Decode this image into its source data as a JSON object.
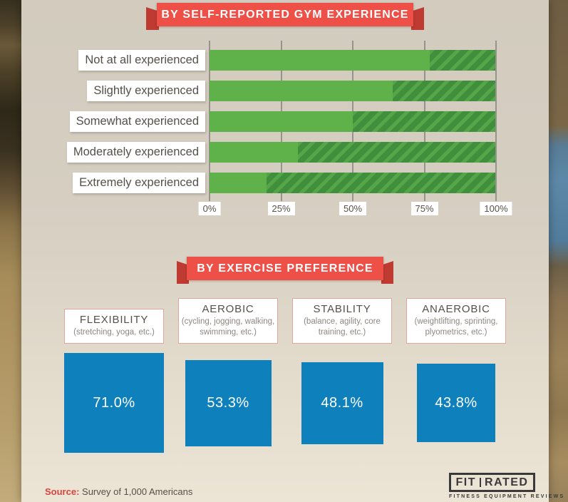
{
  "experience_section": {
    "banner": "BY SELF-REPORTED GYM EXPERIENCE"
  },
  "preference_section": {
    "banner": "BY EXERCISE PREFERENCE"
  },
  "footer": {
    "source_label": "Source:",
    "source_text": "Survey of 1,000 Americans"
  },
  "logo": {
    "part1": "FIT",
    "part2": "RATED",
    "tagline": "FITNESS EQUIPMENT REVIEWS"
  },
  "colors": {
    "banner_red": "#ee5048",
    "banner_fold_red": "#bf3a31",
    "bar_solid_green": "#5fb24a",
    "bar_hatch_dark_green": "#3f8f3c",
    "bar_hatch_light_green": "#55a649",
    "square_blue": "#0e80bc",
    "panel_beige": "#d5cec1",
    "source_red": "#d9453c"
  },
  "chart_data": [
    {
      "type": "bar",
      "orientation": "horizontal",
      "stacked": true,
      "title": "BY SELF-REPORTED GYM EXPERIENCE",
      "categories": [
        {
          "label": "Not at all experienced"
        },
        {
          "label": "Slightly experienced"
        },
        {
          "label": "Somewhat experienced"
        },
        {
          "label": "Moderately experienced"
        },
        {
          "label": "Extremely experienced"
        }
      ],
      "series": [
        {
          "name": "solid-green",
          "values": [
            77,
            64,
            50,
            31,
            20
          ]
        },
        {
          "name": "hatched-green-remainder",
          "values": [
            23,
            36,
            50,
            69,
            80
          ]
        }
      ],
      "xlim": [
        0,
        100
      ],
      "x_ticks": [
        "0%",
        "25%",
        "50%",
        "75%",
        "100%"
      ],
      "grid": true,
      "legend": "none"
    },
    {
      "type": "bar",
      "variant": "proportional-squares",
      "title": "BY EXERCISE PREFERENCE",
      "categories": [
        {
          "name": "FLEXIBILITY",
          "detail": "(stretching, yoga, etc.)"
        },
        {
          "name": "AEROBIC",
          "detail": "(cycling, jogging, walking, swimming, etc.)"
        },
        {
          "name": "STABILITY",
          "detail": "(balance, agility, core training, etc.)"
        },
        {
          "name": "ANAEROBIC",
          "detail": "(weightlifting, sprinting, plyometrics, etc.)"
        }
      ],
      "values": [
        71.0,
        53.3,
        48.1,
        43.8
      ],
      "value_labels": [
        "71.0%",
        "53.3%",
        "48.1%",
        "43.8%"
      ]
    }
  ]
}
